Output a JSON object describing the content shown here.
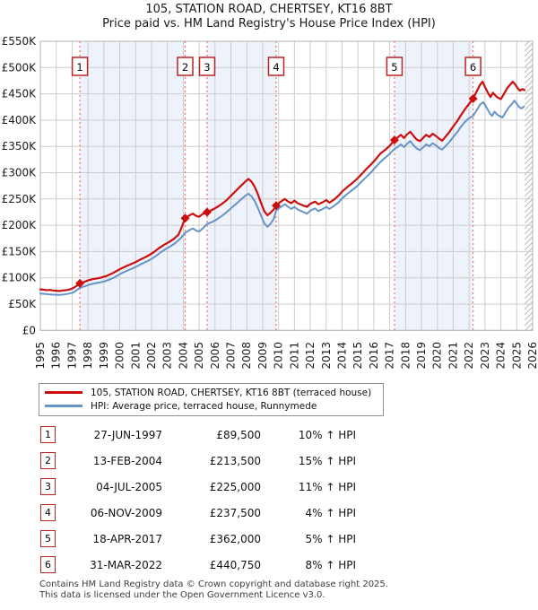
{
  "title": "105, STATION ROAD, CHERTSEY, KT16 8BT",
  "subtitle": "Price paid vs. HM Land Registry's House Price Index (HPI)",
  "legend": [
    {
      "label": "105, STATION ROAD, CHERTSEY, KT16 8BT (terraced house)",
      "color": "#cc0e0e"
    },
    {
      "label": "HPI: Average price, terraced house, Runnymede",
      "color": "#6694c9"
    }
  ],
  "transactions": [
    {
      "num": "1",
      "date": "27-JUN-1997",
      "price": "£89,500",
      "hpi": "10% ↑ HPI",
      "year": 1997.49,
      "value_k": 89.5
    },
    {
      "num": "2",
      "date": "13-FEB-2004",
      "price": "£213,500",
      "hpi": "15% ↑ HPI",
      "year": 2004.12,
      "value_k": 213.5
    },
    {
      "num": "3",
      "date": "04-JUL-2005",
      "price": "£225,000",
      "hpi": "11% ↑ HPI",
      "year": 2005.5,
      "value_k": 225
    },
    {
      "num": "4",
      "date": "06-NOV-2009",
      "price": "£237,500",
      "hpi": "4% ↑ HPI",
      "year": 2009.85,
      "value_k": 237.5
    },
    {
      "num": "5",
      "date": "18-APR-2017",
      "price": "£362,000",
      "hpi": "5% ↑ HPI",
      "year": 2017.3,
      "value_k": 362
    },
    {
      "num": "6",
      "date": "31-MAR-2022",
      "price": "£440,750",
      "hpi": "8% ↑ HPI",
      "year": 2022.25,
      "value_k": 440.75
    }
  ],
  "footer": [
    "Contains HM Land Registry data © Crown copyright and database right 2025.",
    "This data is licensed under the Open Government Licence v3.0."
  ],
  "chart_data": {
    "type": "line",
    "xlabel": "",
    "ylabel": "",
    "xlim": [
      1995,
      2026
    ],
    "ylim_k": [
      0,
      550
    ],
    "x_tick_labels": [
      "1995",
      "1996",
      "1997",
      "1998",
      "1999",
      "2000",
      "2001",
      "2002",
      "2003",
      "2004",
      "2005",
      "2006",
      "2007",
      "2008",
      "2009",
      "2010",
      "2011",
      "2012",
      "2013",
      "2014",
      "2015",
      "2016",
      "2017",
      "2018",
      "2019",
      "2020",
      "2021",
      "2022",
      "2023",
      "2024",
      "2025",
      "2026"
    ],
    "y_tick_labels": [
      "£0",
      "£50K",
      "£100K",
      "£150K",
      "£200K",
      "£250K",
      "£300K",
      "£350K",
      "£400K",
      "£450K",
      "£500K",
      "£550K"
    ],
    "grid": true,
    "legend_position": "below",
    "colors": {
      "grid": "#cccccc",
      "border": "#b3b3b3",
      "band": "#eef2fa",
      "sale_dash": "#f07070",
      "property": "#cc0e0e",
      "hpi": "#6694c9",
      "hatch": "#bbbbbb"
    },
    "shaded_spans": [
      [
        1997.49,
        2004.12
      ],
      [
        2005.5,
        2009.85
      ],
      [
        2017.3,
        2022.25
      ]
    ],
    "hatch_span": [
      2025.5,
      2026
    ],
    "series": [
      {
        "name": "105, STATION ROAD, CHERTSEY, KT16 8BT (terraced house)",
        "color": "#cc0e0e",
        "width": 2.2,
        "points_year_valueK": [
          [
            1995.0,
            78
          ],
          [
            1995.2,
            77.5
          ],
          [
            1995.4,
            76.5
          ],
          [
            1995.6,
            77
          ],
          [
            1995.8,
            76
          ],
          [
            1996.0,
            75.5
          ],
          [
            1996.2,
            75
          ],
          [
            1996.4,
            76
          ],
          [
            1996.6,
            76.5
          ],
          [
            1996.8,
            77.5
          ],
          [
            1997.0,
            79.5
          ],
          [
            1997.2,
            83
          ],
          [
            1997.49,
            89.5
          ],
          [
            1997.7,
            91.5
          ],
          [
            1998.0,
            95
          ],
          [
            1998.3,
            97.5
          ],
          [
            1998.6,
            99
          ],
          [
            1998.9,
            101
          ],
          [
            1999.2,
            104
          ],
          [
            1999.5,
            108
          ],
          [
            1999.8,
            113
          ],
          [
            2000.1,
            118
          ],
          [
            2000.4,
            122
          ],
          [
            2000.7,
            126
          ],
          [
            2001.0,
            130
          ],
          [
            2001.3,
            135
          ],
          [
            2001.6,
            139
          ],
          [
            2001.9,
            144
          ],
          [
            2002.2,
            150
          ],
          [
            2002.5,
            157
          ],
          [
            2002.8,
            163
          ],
          [
            2003.1,
            168
          ],
          [
            2003.4,
            174
          ],
          [
            2003.7,
            182
          ],
          [
            2003.9,
            196
          ],
          [
            2004.12,
            213.5
          ],
          [
            2004.4,
            219
          ],
          [
            2004.6,
            222
          ],
          [
            2004.8,
            218
          ],
          [
            2005.0,
            216
          ],
          [
            2005.2,
            221
          ],
          [
            2005.5,
            225
          ],
          [
            2005.8,
            229
          ],
          [
            2006.1,
            234
          ],
          [
            2006.4,
            240
          ],
          [
            2006.7,
            247
          ],
          [
            2007.0,
            256
          ],
          [
            2007.3,
            265
          ],
          [
            2007.6,
            274
          ],
          [
            2007.9,
            283
          ],
          [
            2008.1,
            288
          ],
          [
            2008.3,
            283
          ],
          [
            2008.5,
            273
          ],
          [
            2008.7,
            259
          ],
          [
            2008.9,
            242
          ],
          [
            2009.1,
            227
          ],
          [
            2009.3,
            219
          ],
          [
            2009.5,
            224
          ],
          [
            2009.7,
            230
          ],
          [
            2009.85,
            237.5
          ],
          [
            2010.1,
            244
          ],
          [
            2010.4,
            250
          ],
          [
            2010.6,
            245
          ],
          [
            2010.8,
            242
          ],
          [
            2011.0,
            247
          ],
          [
            2011.2,
            242
          ],
          [
            2011.5,
            238
          ],
          [
            2011.8,
            235
          ],
          [
            2012.0,
            241
          ],
          [
            2012.3,
            245
          ],
          [
            2012.5,
            240
          ],
          [
            2012.8,
            244
          ],
          [
            2013.0,
            248
          ],
          [
            2013.2,
            243
          ],
          [
            2013.5,
            249
          ],
          [
            2013.8,
            257
          ],
          [
            2014.0,
            264
          ],
          [
            2014.3,
            272
          ],
          [
            2014.6,
            279
          ],
          [
            2014.9,
            287
          ],
          [
            2015.2,
            296
          ],
          [
            2015.5,
            306
          ],
          [
            2015.8,
            315
          ],
          [
            2016.1,
            325
          ],
          [
            2016.4,
            336
          ],
          [
            2016.7,
            343
          ],
          [
            2017.0,
            351
          ],
          [
            2017.3,
            362
          ],
          [
            2017.5,
            367
          ],
          [
            2017.7,
            372
          ],
          [
            2017.9,
            366
          ],
          [
            2018.1,
            373
          ],
          [
            2018.3,
            378
          ],
          [
            2018.5,
            370
          ],
          [
            2018.7,
            363
          ],
          [
            2018.9,
            360
          ],
          [
            2019.1,
            366
          ],
          [
            2019.3,
            372
          ],
          [
            2019.5,
            368
          ],
          [
            2019.7,
            374
          ],
          [
            2019.9,
            370
          ],
          [
            2020.1,
            365
          ],
          [
            2020.3,
            361
          ],
          [
            2020.5,
            368
          ],
          [
            2020.75,
            377
          ],
          [
            2021.0,
            388
          ],
          [
            2021.25,
            398
          ],
          [
            2021.5,
            410
          ],
          [
            2021.75,
            421
          ],
          [
            2022.0,
            431
          ],
          [
            2022.25,
            440.75
          ],
          [
            2022.5,
            456
          ],
          [
            2022.7,
            468
          ],
          [
            2022.85,
            473
          ],
          [
            2023.0,
            463
          ],
          [
            2023.2,
            451
          ],
          [
            2023.35,
            444
          ],
          [
            2023.5,
            452
          ],
          [
            2023.65,
            447
          ],
          [
            2023.8,
            443
          ],
          [
            2024.0,
            440
          ],
          [
            2024.2,
            450
          ],
          [
            2024.4,
            461
          ],
          [
            2024.6,
            468
          ],
          [
            2024.75,
            473
          ],
          [
            2024.9,
            468
          ],
          [
            2025.05,
            461
          ],
          [
            2025.2,
            456
          ],
          [
            2025.35,
            459
          ],
          [
            2025.5,
            457
          ]
        ]
      },
      {
        "name": "HPI: Average price, terraced house, Runnymede",
        "color": "#6694c9",
        "width": 2,
        "points_year_valueK": [
          [
            1995.0,
            70
          ],
          [
            1995.3,
            69.5
          ],
          [
            1995.6,
            68.5
          ],
          [
            1995.9,
            68
          ],
          [
            1996.2,
            67.5
          ],
          [
            1996.5,
            68.5
          ],
          [
            1996.8,
            70
          ],
          [
            1997.1,
            72.5
          ],
          [
            1997.49,
            81
          ],
          [
            1997.8,
            84
          ],
          [
            1998.1,
            87
          ],
          [
            1998.4,
            89.5
          ],
          [
            1998.7,
            91
          ],
          [
            1999.0,
            93
          ],
          [
            1999.3,
            96
          ],
          [
            1999.6,
            100
          ],
          [
            1999.9,
            105
          ],
          [
            2000.2,
            110
          ],
          [
            2000.5,
            114
          ],
          [
            2000.8,
            118
          ],
          [
            2001.1,
            122
          ],
          [
            2001.4,
            127
          ],
          [
            2001.7,
            131
          ],
          [
            2002.0,
            136
          ],
          [
            2002.3,
            142
          ],
          [
            2002.6,
            149
          ],
          [
            2002.9,
            155
          ],
          [
            2003.2,
            160
          ],
          [
            2003.5,
            166
          ],
          [
            2003.8,
            174
          ],
          [
            2004.12,
            185.5
          ],
          [
            2004.4,
            191
          ],
          [
            2004.6,
            194
          ],
          [
            2004.8,
            190
          ],
          [
            2005.0,
            188
          ],
          [
            2005.2,
            193
          ],
          [
            2005.5,
            202.5
          ],
          [
            2005.8,
            206
          ],
          [
            2006.1,
            211
          ],
          [
            2006.4,
            217
          ],
          [
            2006.7,
            224
          ],
          [
            2007.0,
            232
          ],
          [
            2007.3,
            240
          ],
          [
            2007.6,
            248
          ],
          [
            2007.9,
            256
          ],
          [
            2008.1,
            260
          ],
          [
            2008.3,
            255
          ],
          [
            2008.5,
            246
          ],
          [
            2008.7,
            233
          ],
          [
            2008.9,
            218
          ],
          [
            2009.1,
            204
          ],
          [
            2009.3,
            197
          ],
          [
            2009.5,
            203
          ],
          [
            2009.7,
            212
          ],
          [
            2009.85,
            228
          ],
          [
            2010.1,
            234
          ],
          [
            2010.4,
            240
          ],
          [
            2010.6,
            235
          ],
          [
            2010.8,
            231
          ],
          [
            2011.0,
            235
          ],
          [
            2011.2,
            230
          ],
          [
            2011.5,
            226
          ],
          [
            2011.8,
            222
          ],
          [
            2012.0,
            228
          ],
          [
            2012.3,
            232
          ],
          [
            2012.5,
            227
          ],
          [
            2012.8,
            231
          ],
          [
            2013.0,
            235
          ],
          [
            2013.2,
            231
          ],
          [
            2013.5,
            237
          ],
          [
            2013.8,
            244
          ],
          [
            2014.0,
            251
          ],
          [
            2014.3,
            259
          ],
          [
            2014.6,
            266
          ],
          [
            2014.9,
            273
          ],
          [
            2015.2,
            282
          ],
          [
            2015.5,
            291
          ],
          [
            2015.8,
            300
          ],
          [
            2016.1,
            310
          ],
          [
            2016.4,
            320
          ],
          [
            2016.7,
            328
          ],
          [
            2017.0,
            336
          ],
          [
            2017.3,
            345
          ],
          [
            2017.5,
            349
          ],
          [
            2017.7,
            354
          ],
          [
            2017.9,
            349
          ],
          [
            2018.1,
            355
          ],
          [
            2018.3,
            360
          ],
          [
            2018.5,
            352
          ],
          [
            2018.7,
            346
          ],
          [
            2018.9,
            343
          ],
          [
            2019.1,
            348
          ],
          [
            2019.3,
            354
          ],
          [
            2019.5,
            350
          ],
          [
            2019.7,
            356
          ],
          [
            2019.9,
            352
          ],
          [
            2020.1,
            347
          ],
          [
            2020.3,
            344
          ],
          [
            2020.5,
            350
          ],
          [
            2020.75,
            358
          ],
          [
            2021.0,
            368
          ],
          [
            2021.25,
            377
          ],
          [
            2021.5,
            388
          ],
          [
            2021.75,
            397
          ],
          [
            2022.0,
            404
          ],
          [
            2022.25,
            408
          ],
          [
            2022.5,
            420
          ],
          [
            2022.7,
            430
          ],
          [
            2022.9,
            434
          ],
          [
            2023.1,
            424
          ],
          [
            2023.3,
            413
          ],
          [
            2023.45,
            408
          ],
          [
            2023.6,
            416
          ],
          [
            2023.75,
            411
          ],
          [
            2023.9,
            408
          ],
          [
            2024.1,
            405
          ],
          [
            2024.3,
            415
          ],
          [
            2024.5,
            424
          ],
          [
            2024.7,
            431
          ],
          [
            2024.85,
            437
          ],
          [
            2025.0,
            431
          ],
          [
            2025.15,
            425
          ],
          [
            2025.3,
            422
          ],
          [
            2025.45,
            426
          ]
        ]
      }
    ]
  }
}
